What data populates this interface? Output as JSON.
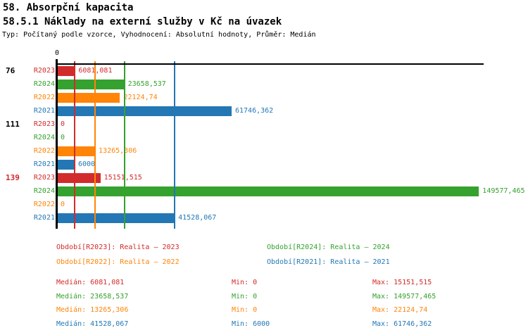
{
  "header": {
    "title": "58. Absorpční kapacita",
    "subtitle": "58.5.1 Náklady na externí služby v Kč na úvazek",
    "meta": "Typ: Počítaný podle vzorce, Vyhodnocení: Absolutní hodnoty, Průměr: Medián"
  },
  "colors": {
    "r2023": "#d22b2b",
    "r2024": "#35a12e",
    "r2022": "#ff8408",
    "r2021": "#2377b4",
    "axis": "#000000",
    "highlight_group_label": "#d22b2b",
    "default_group_label": "#000000"
  },
  "chart_data": {
    "type": "bar",
    "orientation": "horizontal",
    "value_axis": {
      "zero_label": "0",
      "min": 0,
      "max": 151250,
      "gridlines": "median-per-series"
    },
    "series": [
      {
        "id": "R2023",
        "label": "R2023",
        "color_key": "r2023"
      },
      {
        "id": "R2024",
        "label": "R2024",
        "color_key": "r2024"
      },
      {
        "id": "R2022",
        "label": "R2022",
        "color_key": "r2022"
      },
      {
        "id": "R2021",
        "label": "R2021",
        "color_key": "r2021"
      }
    ],
    "groups": [
      {
        "label": "76",
        "highlight": false,
        "values": [
          {
            "series": "R2023",
            "value": 6081.081,
            "display": "6081,081"
          },
          {
            "series": "R2024",
            "value": 23658.537,
            "display": "23658,537"
          },
          {
            "series": "R2022",
            "value": 22124.74,
            "display": "22124,74"
          },
          {
            "series": "R2021",
            "value": 61746.362,
            "display": "61746,362"
          }
        ]
      },
      {
        "label": "111",
        "highlight": false,
        "values": [
          {
            "series": "R2023",
            "value": 0,
            "display": "0"
          },
          {
            "series": "R2024",
            "value": 0,
            "display": "0"
          },
          {
            "series": "R2022",
            "value": 13265.306,
            "display": "13265,306"
          },
          {
            "series": "R2021",
            "value": 6000,
            "display": "6000"
          }
        ]
      },
      {
        "label": "139",
        "highlight": true,
        "values": [
          {
            "series": "R2023",
            "value": 15151.515,
            "display": "15151,515"
          },
          {
            "series": "R2024",
            "value": 149577.465,
            "display": "149577,465"
          },
          {
            "series": "R2022",
            "value": 0,
            "display": "0"
          },
          {
            "series": "R2021",
            "value": 41528.067,
            "display": "41528,067"
          }
        ]
      }
    ],
    "median_lines": [
      {
        "series": "R2023",
        "value": 6081.081
      },
      {
        "series": "R2022",
        "value": 13265.306
      },
      {
        "series": "R2024",
        "value": 23658.537
      },
      {
        "series": "R2021",
        "value": 41528.067
      }
    ]
  },
  "legend": [
    {
      "text": "Období[R2023]: Realita – 2023",
      "color_key": "r2023"
    },
    {
      "text": "Období[R2024]: Realita – 2024",
      "color_key": "r2024"
    },
    {
      "text": "Období[R2022]: Realita – 2022",
      "color_key": "r2022"
    },
    {
      "text": "Období[R2021]: Realita – 2021",
      "color_key": "r2021"
    }
  ],
  "stats": {
    "labels": {
      "median": "Medián:",
      "min": "Min:",
      "max": "Max:"
    },
    "rows": [
      {
        "color_key": "r2023",
        "median": "6081,081",
        "min": "0",
        "max": "15151,515"
      },
      {
        "color_key": "r2024",
        "median": "23658,537",
        "min": "0",
        "max": "149577,465"
      },
      {
        "color_key": "r2022",
        "median": "13265,306",
        "min": "0",
        "max": "22124,74"
      },
      {
        "color_key": "r2021",
        "median": "41528,067",
        "min": "6000",
        "max": "61746,362"
      }
    ]
  }
}
